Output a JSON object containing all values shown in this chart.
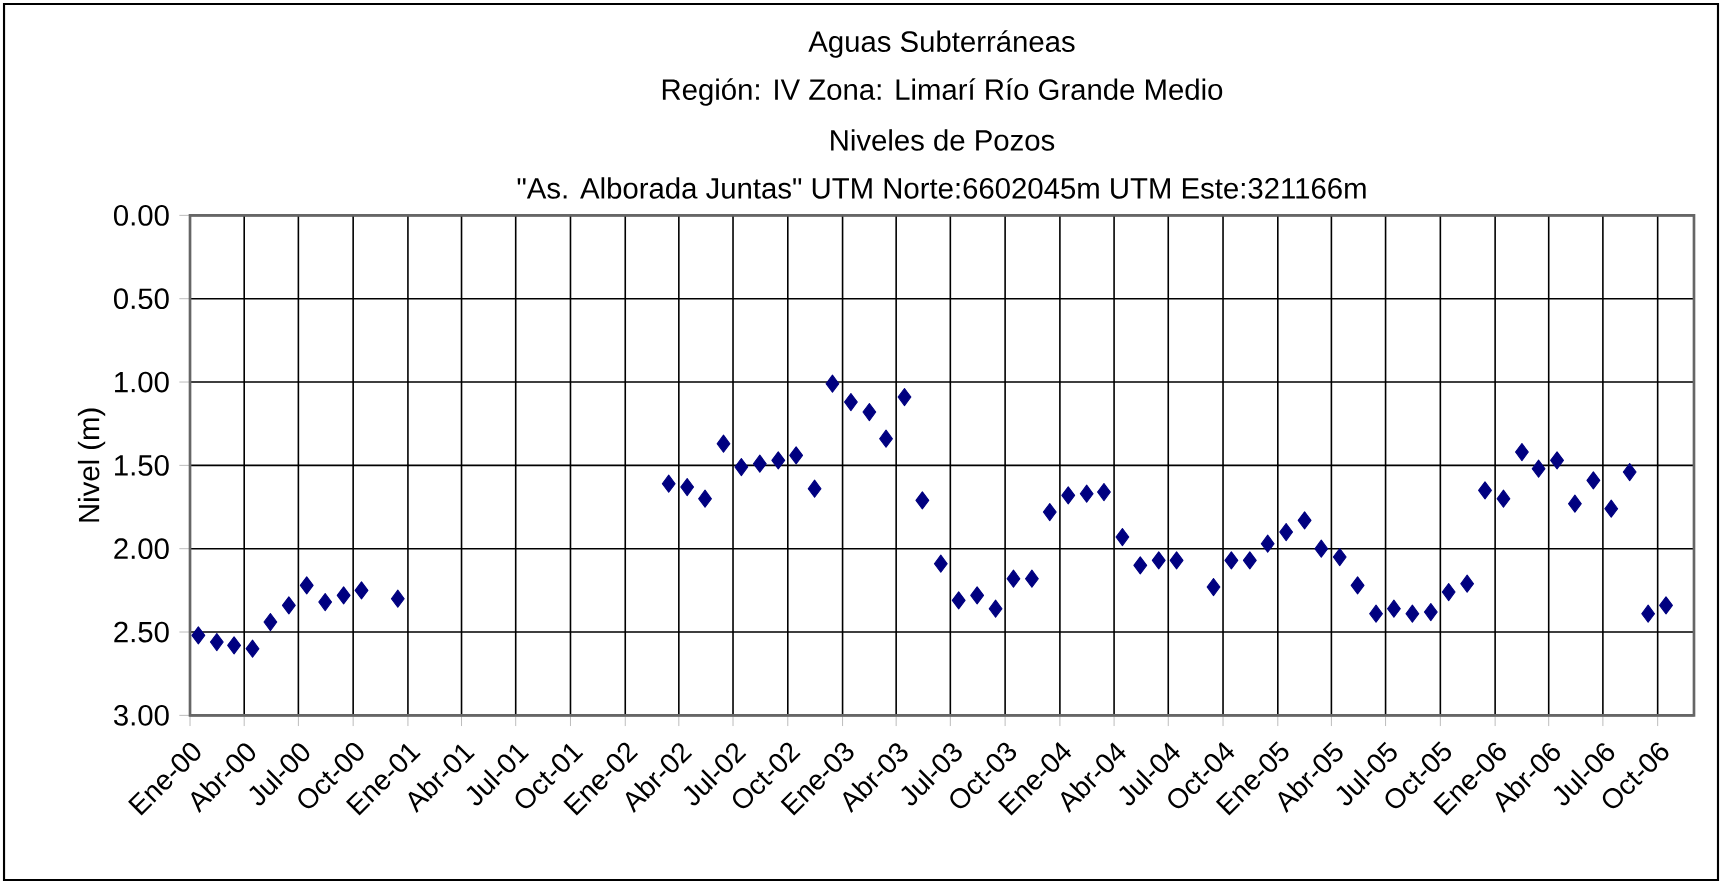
{
  "chart_data": {
    "type": "scatter",
    "title": "Aguas Subterráneas",
    "subtitle": "Región: IV  Zona: Limarí Río Grande Medio",
    "annotations": [
      "Niveles de Pozos",
      "\"As. Alborada Juntas\"  UTM Norte:6602045m    UTM Este:321166m"
    ],
    "ylabel": "Nivel (m)",
    "x": [
      "2000-01-15",
      "2000-02-15",
      "2000-03-15",
      "2000-04-15",
      "2000-05-15",
      "2000-06-15",
      "2000-07-15",
      "2000-08-15",
      "2000-09-15",
      "2000-10-15",
      "2000-12-15",
      "2002-03-15",
      "2002-04-15",
      "2002-05-15",
      "2002-06-15",
      "2002-07-15",
      "2002-08-15",
      "2002-09-15",
      "2002-10-15",
      "2002-11-15",
      "2002-12-15",
      "2003-01-15",
      "2003-02-15",
      "2003-03-15",
      "2003-04-15",
      "2003-05-15",
      "2003-06-15",
      "2003-07-15",
      "2003-08-15",
      "2003-09-15",
      "2003-10-15",
      "2003-11-15",
      "2003-12-15",
      "2004-01-15",
      "2004-02-15",
      "2004-03-15",
      "2004-04-15",
      "2004-05-15",
      "2004-06-15",
      "2004-07-15",
      "2004-09-15",
      "2004-10-15",
      "2004-11-15",
      "2004-12-15",
      "2005-01-15",
      "2005-02-15",
      "2005-03-15",
      "2005-04-15",
      "2005-05-15",
      "2005-06-15",
      "2005-07-15",
      "2005-08-15",
      "2005-09-15",
      "2005-10-15",
      "2005-11-15",
      "2005-12-15",
      "2006-01-15",
      "2006-02-15",
      "2006-03-15",
      "2006-04-15",
      "2006-05-15",
      "2006-06-15",
      "2006-07-15",
      "2006-08-15",
      "2006-09-15",
      "2006-10-15"
    ],
    "series": [
      {
        "color": "#000080",
        "values": [
          2.52,
          2.56,
          2.58,
          2.6,
          2.44,
          2.34,
          2.22,
          2.32,
          2.28,
          2.25,
          2.3,
          1.61,
          1.63,
          1.7,
          1.37,
          1.51,
          1.49,
          1.47,
          1.44,
          1.64,
          1.01,
          1.12,
          1.18,
          1.34,
          1.09,
          1.71,
          2.09,
          2.31,
          2.28,
          2.36,
          2.18,
          2.18,
          1.78,
          1.68,
          1.67,
          1.66,
          1.93,
          2.1,
          2.07,
          2.07,
          2.23,
          2.07,
          2.07,
          1.97,
          1.9,
          1.83,
          2.0,
          2.05,
          2.22,
          2.39,
          2.36,
          2.39,
          2.38,
          2.26,
          2.21,
          1.65,
          1.7,
          1.42,
          1.52,
          1.47,
          1.73,
          1.59,
          1.76,
          1.54,
          2.39,
          2.34
        ]
      }
    ],
    "xlim": [
      "2000-01-01",
      "2006-12-01"
    ],
    "xticks": [
      {
        "value": "2000-01-01",
        "label": "Ene-00"
      },
      {
        "value": "2000-04-01",
        "label": "Abr-00"
      },
      {
        "value": "2000-07-01",
        "label": "Jul-00"
      },
      {
        "value": "2000-10-01",
        "label": "Oct-00"
      },
      {
        "value": "2001-01-01",
        "label": "Ene-01"
      },
      {
        "value": "2001-04-01",
        "label": "Abr-01"
      },
      {
        "value": "2001-07-01",
        "label": "Jul-01"
      },
      {
        "value": "2001-10-01",
        "label": "Oct-01"
      },
      {
        "value": "2002-01-01",
        "label": "Ene-02"
      },
      {
        "value": "2002-04-01",
        "label": "Abr-02"
      },
      {
        "value": "2002-07-01",
        "label": "Jul-02"
      },
      {
        "value": "2002-10-01",
        "label": "Oct-02"
      },
      {
        "value": "2003-01-01",
        "label": "Ene-03"
      },
      {
        "value": "2003-04-01",
        "label": "Abr-03"
      },
      {
        "value": "2003-07-01",
        "label": "Jul-03"
      },
      {
        "value": "2003-10-01",
        "label": "Oct-03"
      },
      {
        "value": "2004-01-01",
        "label": "Ene-04"
      },
      {
        "value": "2004-04-01",
        "label": "Abr-04"
      },
      {
        "value": "2004-07-01",
        "label": "Jul-04"
      },
      {
        "value": "2004-10-01",
        "label": "Oct-04"
      },
      {
        "value": "2005-01-01",
        "label": "Ene-05"
      },
      {
        "value": "2005-04-01",
        "label": "Abr-05"
      },
      {
        "value": "2005-07-01",
        "label": "Jul-05"
      },
      {
        "value": "2005-10-01",
        "label": "Oct-05"
      },
      {
        "value": "2006-01-01",
        "label": "Ene-06"
      },
      {
        "value": "2006-04-01",
        "label": "Abr-06"
      },
      {
        "value": "2006-07-01",
        "label": "Jul-06"
      },
      {
        "value": "2006-10-01",
        "label": "Oct-06"
      }
    ],
    "ylim": [
      3.0,
      0.0
    ],
    "yticks": [
      {
        "value": 0,
        "label": "0.00"
      },
      {
        "value": 0.5,
        "label": "0.50"
      },
      {
        "value": 1,
        "label": "1.00"
      },
      {
        "value": 1.5,
        "label": "1.50"
      },
      {
        "value": 2,
        "label": "2.00"
      },
      {
        "value": 2.5,
        "label": "2.50"
      },
      {
        "value": 3,
        "label": "3.00"
      }
    ],
    "grid": true,
    "marker": "diamond"
  }
}
